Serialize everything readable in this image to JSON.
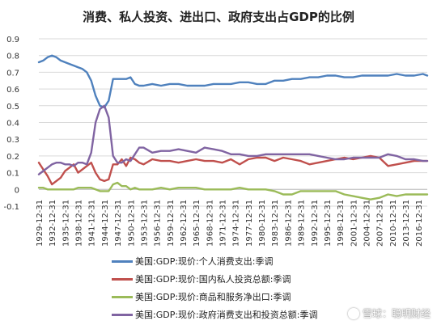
{
  "chart_data": {
    "type": "line",
    "title": "消费、私人投资、进出口、政府支出占GDP的比例",
    "ylim": [
      -0.1,
      0.9
    ],
    "yticks": [
      "0.9",
      "0.8",
      "0.7",
      "0.6",
      "0.5",
      "0.4",
      "0.3",
      "0.2",
      "0.1",
      "0",
      "-0.1"
    ],
    "x_tick_labels": [
      "1929-12-31",
      "1932-12-31",
      "1935-12-31",
      "1938-12-31",
      "1941-12-31",
      "1944-12-31",
      "1947-12-31",
      "1950-12-31",
      "1953-12-31",
      "1956-12-31",
      "1959-12-31",
      "1962-12-31",
      "1965-12-31",
      "1968-12-31",
      "1971-12-31",
      "1974-12-31",
      "1977-12-31",
      "1980-12-31",
      "1983-12-31",
      "1986-12-31",
      "1989-12-31",
      "1992-12-31",
      "1995-12-31",
      "1998-12-31",
      "2001-12-31",
      "2004-12-31",
      "2007-12-31",
      "2010-12-31",
      "2013-12-31",
      "2016-12-31"
    ],
    "xlim": [
      1929,
      2018
    ],
    "gridlines": true,
    "legend_position": "bottom",
    "series": [
      {
        "name": "美国:GDP:现价:个人消费支出:季调",
        "color": "#4f81bd",
        "x": [
          1929,
          1930,
          1931,
          1932,
          1933,
          1934,
          1935,
          1936,
          1937,
          1938,
          1939,
          1940,
          1941,
          1942,
          1943,
          1944,
          1945,
          1946,
          1947,
          1948,
          1949,
          1950,
          1951,
          1952,
          1953,
          1955,
          1957,
          1959,
          1961,
          1963,
          1965,
          1967,
          1969,
          1971,
          1973,
          1975,
          1977,
          1979,
          1981,
          1983,
          1985,
          1987,
          1989,
          1991,
          1993,
          1995,
          1997,
          1999,
          2001,
          2003,
          2005,
          2007,
          2009,
          2011,
          2013,
          2015,
          2017,
          2018
        ],
        "y": [
          0.76,
          0.77,
          0.79,
          0.8,
          0.79,
          0.77,
          0.76,
          0.75,
          0.74,
          0.73,
          0.72,
          0.7,
          0.65,
          0.56,
          0.5,
          0.49,
          0.53,
          0.66,
          0.66,
          0.66,
          0.66,
          0.67,
          0.63,
          0.62,
          0.62,
          0.63,
          0.62,
          0.63,
          0.63,
          0.62,
          0.62,
          0.62,
          0.63,
          0.63,
          0.63,
          0.64,
          0.64,
          0.63,
          0.63,
          0.65,
          0.65,
          0.66,
          0.66,
          0.67,
          0.67,
          0.68,
          0.68,
          0.67,
          0.67,
          0.68,
          0.68,
          0.68,
          0.68,
          0.69,
          0.68,
          0.68,
          0.69,
          0.68
        ]
      },
      {
        "name": "美国:GDP:现价:国内私人投资总额:季调",
        "color": "#c0504d",
        "x": [
          1929,
          1930,
          1931,
          1932,
          1933,
          1934,
          1935,
          1936,
          1937,
          1938,
          1939,
          1940,
          1941,
          1942,
          1943,
          1944,
          1945,
          1946,
          1947,
          1948,
          1949,
          1950,
          1951,
          1952,
          1953,
          1955,
          1957,
          1959,
          1961,
          1963,
          1965,
          1967,
          1969,
          1971,
          1973,
          1975,
          1977,
          1979,
          1981,
          1983,
          1985,
          1987,
          1989,
          1991,
          1993,
          1995,
          1997,
          1999,
          2001,
          2003,
          2005,
          2007,
          2009,
          2011,
          2013,
          2015,
          2017,
          2018
        ],
        "y": [
          0.16,
          0.12,
          0.08,
          0.03,
          0.05,
          0.07,
          0.11,
          0.13,
          0.15,
          0.1,
          0.12,
          0.14,
          0.16,
          0.1,
          0.06,
          0.05,
          0.06,
          0.15,
          0.15,
          0.18,
          0.14,
          0.19,
          0.18,
          0.16,
          0.15,
          0.18,
          0.17,
          0.17,
          0.16,
          0.17,
          0.18,
          0.17,
          0.17,
          0.16,
          0.18,
          0.15,
          0.18,
          0.19,
          0.19,
          0.17,
          0.19,
          0.18,
          0.17,
          0.15,
          0.16,
          0.17,
          0.18,
          0.19,
          0.18,
          0.19,
          0.2,
          0.19,
          0.14,
          0.15,
          0.16,
          0.17,
          0.17,
          0.17
        ]
      },
      {
        "name": "美国:GDP:现价:商品和服务净出口:季调",
        "color": "#9bbb59",
        "x": [
          1929,
          1930,
          1931,
          1932,
          1933,
          1934,
          1935,
          1936,
          1937,
          1938,
          1939,
          1940,
          1941,
          1942,
          1943,
          1944,
          1945,
          1946,
          1947,
          1948,
          1949,
          1950,
          1951,
          1952,
          1953,
          1955,
          1957,
          1959,
          1961,
          1963,
          1965,
          1967,
          1969,
          1971,
          1973,
          1975,
          1977,
          1979,
          1981,
          1983,
          1985,
          1987,
          1989,
          1991,
          1993,
          1995,
          1997,
          1999,
          2001,
          2003,
          2005,
          2007,
          2009,
          2011,
          2013,
          2015,
          2017,
          2018
        ],
        "y": [
          0.01,
          0.01,
          0.0,
          0.0,
          0.0,
          0.0,
          0.0,
          0.0,
          0.0,
          0.01,
          0.01,
          0.01,
          0.01,
          0.0,
          -0.01,
          -0.01,
          -0.01,
          0.03,
          0.04,
          0.02,
          0.02,
          0.0,
          0.01,
          0.0,
          0.0,
          0.0,
          0.01,
          0.0,
          0.01,
          0.01,
          0.01,
          0.0,
          0.0,
          0.0,
          0.0,
          0.01,
          0.0,
          0.0,
          0.0,
          -0.01,
          -0.03,
          -0.03,
          -0.01,
          -0.01,
          -0.01,
          -0.01,
          -0.01,
          -0.03,
          -0.04,
          -0.05,
          -0.06,
          -0.05,
          -0.03,
          -0.04,
          -0.03,
          -0.03,
          -0.03,
          -0.03
        ]
      },
      {
        "name": "美国:GDP:现价:政府消费支出和投资总额:季调",
        "color": "#8064a2",
        "x": [
          1929,
          1930,
          1931,
          1932,
          1933,
          1934,
          1935,
          1936,
          1937,
          1938,
          1939,
          1940,
          1941,
          1942,
          1943,
          1944,
          1945,
          1946,
          1947,
          1948,
          1949,
          1950,
          1951,
          1952,
          1953,
          1955,
          1957,
          1959,
          1961,
          1963,
          1965,
          1967,
          1969,
          1971,
          1973,
          1975,
          1977,
          1979,
          1981,
          1983,
          1985,
          1987,
          1989,
          1991,
          1993,
          1995,
          1997,
          1999,
          2001,
          2003,
          2005,
          2007,
          2009,
          2011,
          2013,
          2015,
          2017,
          2018
        ],
        "y": [
          0.09,
          0.11,
          0.13,
          0.15,
          0.16,
          0.16,
          0.15,
          0.15,
          0.14,
          0.16,
          0.16,
          0.15,
          0.22,
          0.4,
          0.48,
          0.5,
          0.43,
          0.2,
          0.16,
          0.16,
          0.18,
          0.17,
          0.21,
          0.25,
          0.25,
          0.22,
          0.23,
          0.23,
          0.24,
          0.23,
          0.22,
          0.25,
          0.24,
          0.23,
          0.21,
          0.21,
          0.2,
          0.2,
          0.21,
          0.21,
          0.21,
          0.21,
          0.21,
          0.21,
          0.2,
          0.19,
          0.18,
          0.18,
          0.19,
          0.19,
          0.19,
          0.19,
          0.21,
          0.2,
          0.18,
          0.18,
          0.17,
          0.17
        ]
      }
    ]
  },
  "watermark": {
    "text": "雪球：聪明财经"
  }
}
